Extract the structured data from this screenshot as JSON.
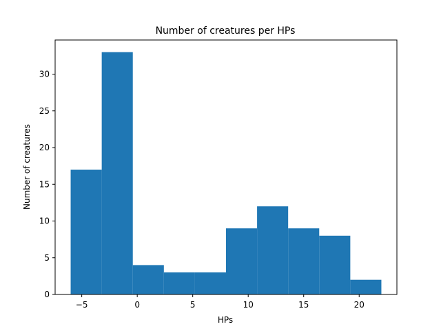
{
  "chart_data": {
    "type": "bar",
    "title": "Number of creatures per HPs",
    "xlabel": "HPs",
    "ylabel": "Number of creatures",
    "bins": [
      {
        "x0": -6.0,
        "x1": -3.2,
        "count": 17
      },
      {
        "x0": -3.2,
        "x1": -0.4,
        "count": 33
      },
      {
        "x0": -0.4,
        "x1": 2.4,
        "count": 4
      },
      {
        "x0": 2.4,
        "x1": 5.2,
        "count": 3
      },
      {
        "x0": 5.2,
        "x1": 8.0,
        "count": 3
      },
      {
        "x0": 8.0,
        "x1": 10.8,
        "count": 9
      },
      {
        "x0": 10.8,
        "x1": 13.6,
        "count": 12
      },
      {
        "x0": 13.6,
        "x1": 16.4,
        "count": 9
      },
      {
        "x0": 16.4,
        "x1": 19.2,
        "count": 8
      },
      {
        "x0": 19.2,
        "x1": 22.0,
        "count": 2
      }
    ],
    "xlim": [
      -7.4,
      23.4
    ],
    "ylim": [
      0,
      34.65
    ],
    "xticks": [
      -5,
      0,
      5,
      10,
      15,
      20
    ],
    "xtick_labels": [
      "−5",
      "0",
      "5",
      "10",
      "15",
      "20"
    ],
    "yticks": [
      0,
      5,
      10,
      15,
      20,
      25,
      30
    ],
    "ytick_labels": [
      "0",
      "5",
      "10",
      "15",
      "20",
      "25",
      "30"
    ],
    "bar_color": "#1f77b4",
    "grid": false,
    "legend": "none"
  }
}
